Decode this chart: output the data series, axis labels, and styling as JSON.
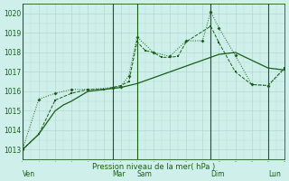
{
  "bg_color": "#cff0ea",
  "grid_color": "#b0d8d0",
  "line_color": "#1a5c1a",
  "xlabel": "Pression niveau de la mer( hPa )",
  "ylim": [
    1012.5,
    1020.5
  ],
  "yticks": [
    1013,
    1014,
    1015,
    1016,
    1017,
    1018,
    1019,
    1020
  ],
  "xlim": [
    0,
    16
  ],
  "day_positions": [
    0,
    5.5,
    7,
    11.5,
    15
  ],
  "day_labels": [
    "Ven",
    "Mar",
    "Sam",
    "Dim",
    "Lun"
  ],
  "vline_positions": [
    0,
    5.5,
    7,
    11.5,
    15
  ],
  "series_dotted_x": [
    0,
    0.5,
    1,
    1.5,
    2,
    2.5,
    3,
    3.5,
    4,
    4.5,
    5,
    5.5,
    6,
    6.5,
    7,
    7.5,
    8,
    8.5,
    9,
    9.5,
    10,
    10.5,
    11,
    11.5,
    12,
    12.5,
    13,
    13.5,
    14,
    14.5,
    15,
    15.5,
    16
  ],
  "series_dotted_y": [
    1013.0,
    1013.4,
    1013.8,
    1014.4,
    1015.0,
    1015.3,
    1015.5,
    1015.75,
    1016.0,
    1016.05,
    1016.1,
    1016.15,
    1016.2,
    1016.3,
    1016.4,
    1016.55,
    1016.7,
    1016.85,
    1017.0,
    1017.15,
    1017.3,
    1017.45,
    1017.6,
    1017.75,
    1017.9,
    1017.95,
    1018.0,
    1017.8,
    1017.6,
    1017.4,
    1017.2,
    1017.15,
    1017.1
  ],
  "series_zigzag1_x": [
    0,
    1,
    2,
    3,
    4,
    5,
    5.5,
    6,
    6.5,
    7,
    7.5,
    8,
    8.5,
    9,
    9.5,
    10,
    11.5,
    12,
    13,
    14,
    15,
    16
  ],
  "series_zigzag1_y": [
    1013.0,
    1013.8,
    1015.55,
    1015.9,
    1016.1,
    1016.1,
    1016.2,
    1016.3,
    1016.5,
    1018.55,
    1018.1,
    1018.0,
    1017.75,
    1017.75,
    1017.8,
    1018.55,
    1019.35,
    1018.5,
    1017.0,
    1016.35,
    1016.3,
    1017.2
  ],
  "series_zigzag2_x": [
    0,
    1,
    2,
    3,
    4,
    5.5,
    6,
    6.5,
    7,
    8,
    9,
    10,
    11,
    11.5,
    12,
    13,
    14,
    15,
    16
  ],
  "series_zigzag2_y": [
    1013.0,
    1015.6,
    1015.9,
    1016.1,
    1016.1,
    1016.2,
    1016.25,
    1016.8,
    1018.8,
    1018.0,
    1017.8,
    1018.6,
    1018.6,
    1020.1,
    1019.25,
    1017.85,
    1016.35,
    1016.3,
    1017.15
  ]
}
